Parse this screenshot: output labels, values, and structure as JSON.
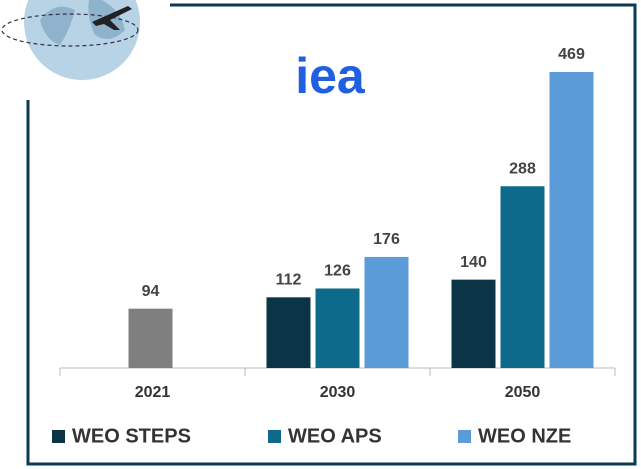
{
  "chart_data": {
    "type": "bar",
    "logo": "iea",
    "categories": [
      "2021",
      "2030",
      "2050"
    ],
    "historical": {
      "color": "#7f7f7f",
      "values": [
        94,
        null,
        null
      ]
    },
    "series": [
      {
        "name": "WEO STEPS",
        "color": "#0b3447",
        "values": [
          null,
          112,
          140
        ]
      },
      {
        "name": "WEO APS",
        "color": "#0e6a8b",
        "values": [
          null,
          126,
          288
        ]
      },
      {
        "name": "WEO NZE",
        "color": "#5b9bd8",
        "values": [
          null,
          176,
          469
        ]
      }
    ]
  }
}
